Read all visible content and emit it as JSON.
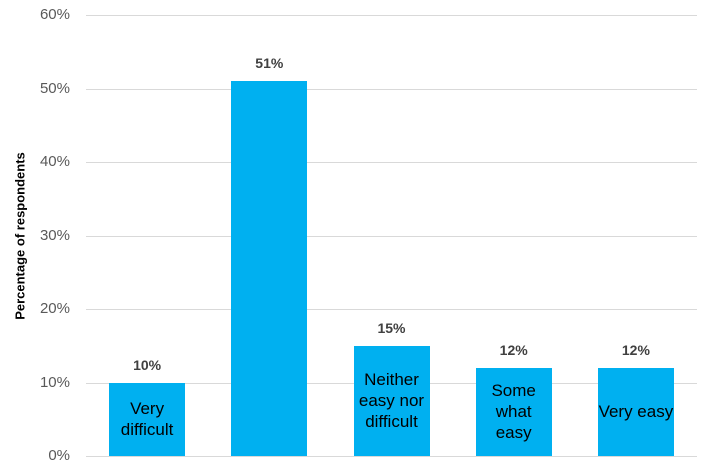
{
  "chart_data": {
    "type": "bar",
    "y_label": "Percentage of respondents",
    "categories": [
      "Very difficult",
      null,
      "Neither easy nor difficult",
      "Some what easy",
      "Very easy"
    ],
    "values": [
      10,
      51,
      15,
      12,
      12
    ],
    "value_labels": [
      "10%",
      "51%",
      "15%",
      "12%",
      "12%"
    ],
    "color": "#00b0f0",
    "ylim": [
      0,
      60
    ],
    "yticks": [
      {
        "value": 0,
        "label": "0%"
      },
      {
        "value": 10,
        "label": "10%"
      },
      {
        "value": 20,
        "label": "20%"
      },
      {
        "value": 30,
        "label": "30%"
      },
      {
        "value": 40,
        "label": "40%"
      },
      {
        "value": 50,
        "label": "50%"
      },
      {
        "value": 60,
        "label": "60%"
      }
    ],
    "grid": true
  }
}
